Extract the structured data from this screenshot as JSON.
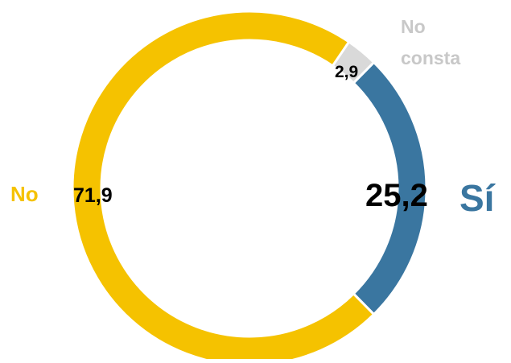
{
  "chart_data": {
    "type": "pie",
    "variant": "donut",
    "unit": "%",
    "slices": [
      {
        "name": "Sí",
        "value": 25.2,
        "label": "25,2",
        "color": "#3a76a0"
      },
      {
        "name": "No",
        "value": 71.9,
        "label": "71,9",
        "color": "#f5c200"
      },
      {
        "name": "No consta",
        "name_lines": [
          "No",
          "consta"
        ],
        "value": 2.9,
        "label": "2,9",
        "color": "#d9d9d9"
      }
    ],
    "legend": "category names placed beside their slices",
    "text_colors": {
      "Sí": "#3a76a0",
      "No": "#f5c200",
      "No consta": "#c8c8c8"
    }
  }
}
